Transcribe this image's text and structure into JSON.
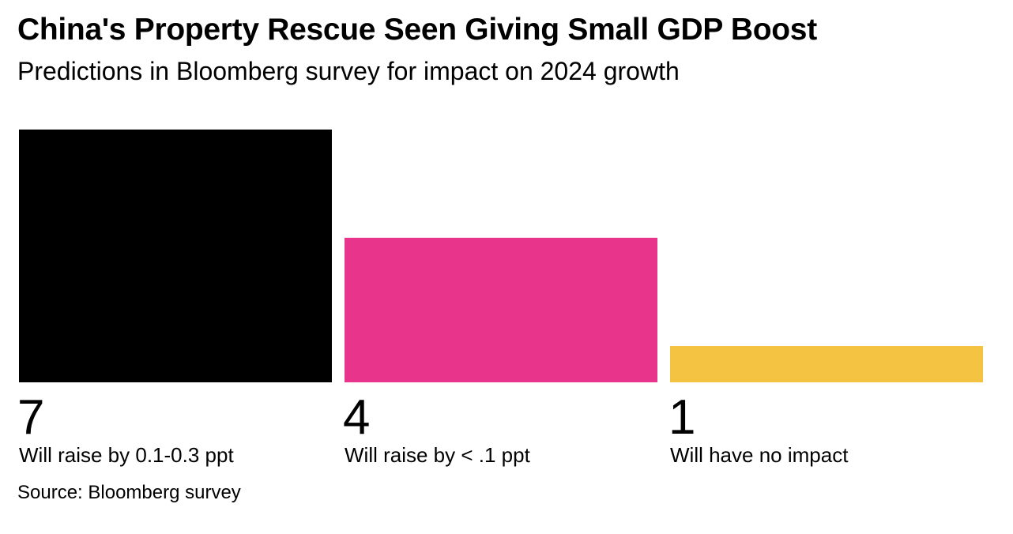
{
  "chart_data": {
    "type": "bar",
    "title": "China's Property Rescue Seen Giving Small GDP Boost",
    "subtitle": "Predictions in Bloomberg survey for impact on 2024 growth",
    "categories": [
      "Will raise by 0.1-0.3 ppt",
      "Will raise by < .1 ppt",
      "Will have no impact"
    ],
    "values": [
      7,
      4,
      1
    ],
    "colors": [
      "#000000",
      "#e8348a",
      "#f5c342"
    ],
    "ylim": [
      0,
      7
    ],
    "grid": false,
    "legend": "none",
    "source": "Source: Bloomberg survey"
  }
}
